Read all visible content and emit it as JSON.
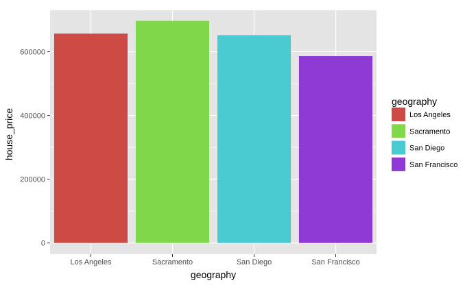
{
  "chart_data": {
    "type": "bar",
    "categories": [
      "Los Angeles",
      "Sacramento",
      "San Diego",
      "San Francisco"
    ],
    "values": [
      657000,
      697000,
      652000,
      586000
    ],
    "colors": [
      "#cd4a45",
      "#82d84b",
      "#4acbd2",
      "#8f39d4"
    ],
    "xlabel": "geography",
    "ylabel": "house_price",
    "ylim": [
      -35000,
      730000
    ],
    "yticks": [
      0,
      200000,
      400000,
      600000
    ],
    "ytick_labels": [
      "0",
      "200000",
      "400000",
      "600000"
    ],
    "grid": true,
    "panel_background": "#e5e5e5",
    "grid_color": "#ffffff",
    "legend": {
      "title": "geography",
      "placement": "right",
      "entries": [
        "Los Angeles",
        "Sacramento",
        "San Diego",
        "San Francisco"
      ]
    }
  }
}
